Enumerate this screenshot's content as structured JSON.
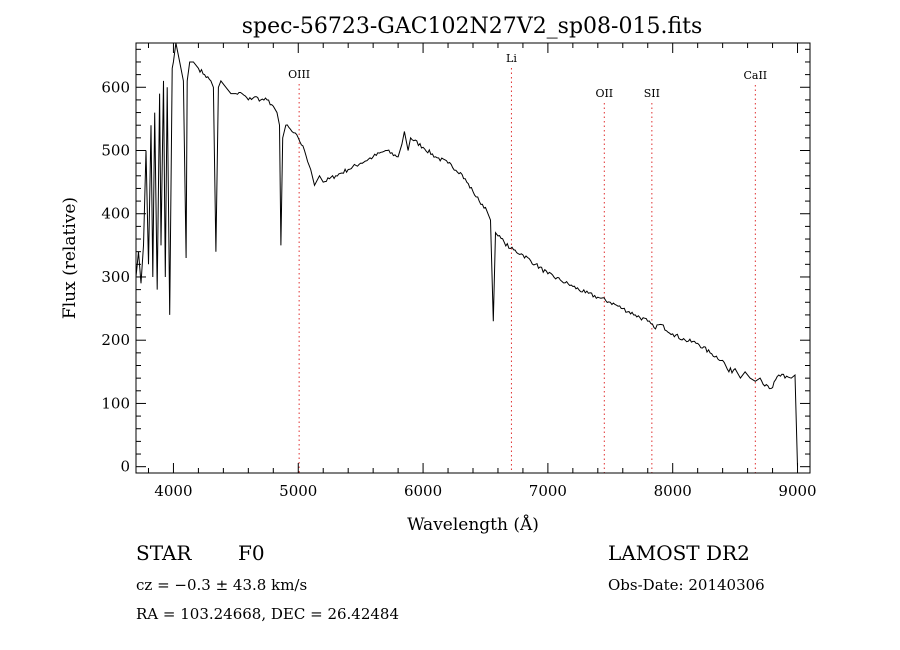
{
  "chart_data": {
    "type": "line",
    "title": "spec-56723-GAC102N27V2_sp08-015.fits",
    "xlabel": "Wavelength (Å)",
    "ylabel": "Flux (relative)",
    "xlim": [
      3700,
      9100
    ],
    "ylim": [
      -10,
      670
    ],
    "x_ticks": [
      4000,
      5000,
      6000,
      7000,
      8000,
      9000
    ],
    "y_ticks": [
      0,
      100,
      200,
      300,
      400,
      500,
      600
    ],
    "grid": false,
    "series": [
      {
        "color": "#000000",
        "x": [
          3700,
          3720,
          3740,
          3760,
          3780,
          3800,
          3820,
          3835,
          3850,
          3870,
          3889,
          3900,
          3920,
          3935,
          3950,
          3970,
          3990,
          4000,
          4020,
          4050,
          4080,
          4101,
          4110,
          4130,
          4160,
          4200,
          4250,
          4300,
          4320,
          4340,
          4360,
          4380,
          4420,
          4460,
          4500,
          4550,
          4600,
          4650,
          4700,
          4750,
          4800,
          4830,
          4850,
          4861,
          4875,
          4900,
          4950,
          5000,
          5050,
          5100,
          5130,
          5170,
          5200,
          5300,
          5400,
          5500,
          5600,
          5700,
          5800,
          5830,
          5850,
          5880,
          5900,
          6000,
          6100,
          6200,
          6300,
          6400,
          6450,
          6500,
          6540,
          6563,
          6580,
          6600,
          6650,
          6700,
          6800,
          6900,
          7000,
          7100,
          7200,
          7300,
          7400,
          7500,
          7600,
          7700,
          7800,
          7850,
          7900,
          8000,
          8100,
          8200,
          8300,
          8400,
          8450,
          8500,
          8542,
          8580,
          8620,
          8662,
          8700,
          8750,
          8800,
          8850,
          8900,
          8950,
          8980,
          9000
        ],
        "y": [
          300,
          340,
          290,
          350,
          500,
          320,
          540,
          300,
          560,
          280,
          590,
          350,
          610,
          300,
          600,
          240,
          630,
          640,
          670,
          640,
          610,
          330,
          610,
          640,
          640,
          630,
          620,
          610,
          600,
          340,
          600,
          610,
          600,
          590,
          590,
          590,
          580,
          585,
          580,
          580,
          570,
          560,
          540,
          350,
          520,
          540,
          530,
          520,
          500,
          470,
          445,
          460,
          450,
          460,
          470,
          480,
          490,
          500,
          490,
          510,
          530,
          500,
          520,
          505,
          490,
          480,
          465,
          435,
          420,
          410,
          390,
          230,
          370,
          365,
          355,
          345,
          335,
          320,
          305,
          295,
          285,
          275,
          268,
          260,
          250,
          240,
          230,
          220,
          225,
          210,
          200,
          195,
          180,
          168,
          150,
          155,
          140,
          150,
          140,
          135,
          140,
          130,
          125,
          145,
          140,
          140,
          145,
          0
        ]
      }
    ],
    "lines": [
      {
        "label": "OIII",
        "x": 5007
      },
      {
        "label": "Li",
        "x": 6708
      },
      {
        "label": "OII",
        "x": 7452
      },
      {
        "label": "SII",
        "x": 7833
      },
      {
        "label": "CaII",
        "x": 8662
      }
    ]
  },
  "info": {
    "class_label": "STAR",
    "subclass_label": "F0",
    "survey_label": "LAMOST DR2",
    "cz_label": "cz = −0.3 ± 43.8 km/s",
    "obs_date_label": "Obs-Date: 20140306",
    "coords_label": "RA = 103.24668, DEC =  26.42484"
  }
}
